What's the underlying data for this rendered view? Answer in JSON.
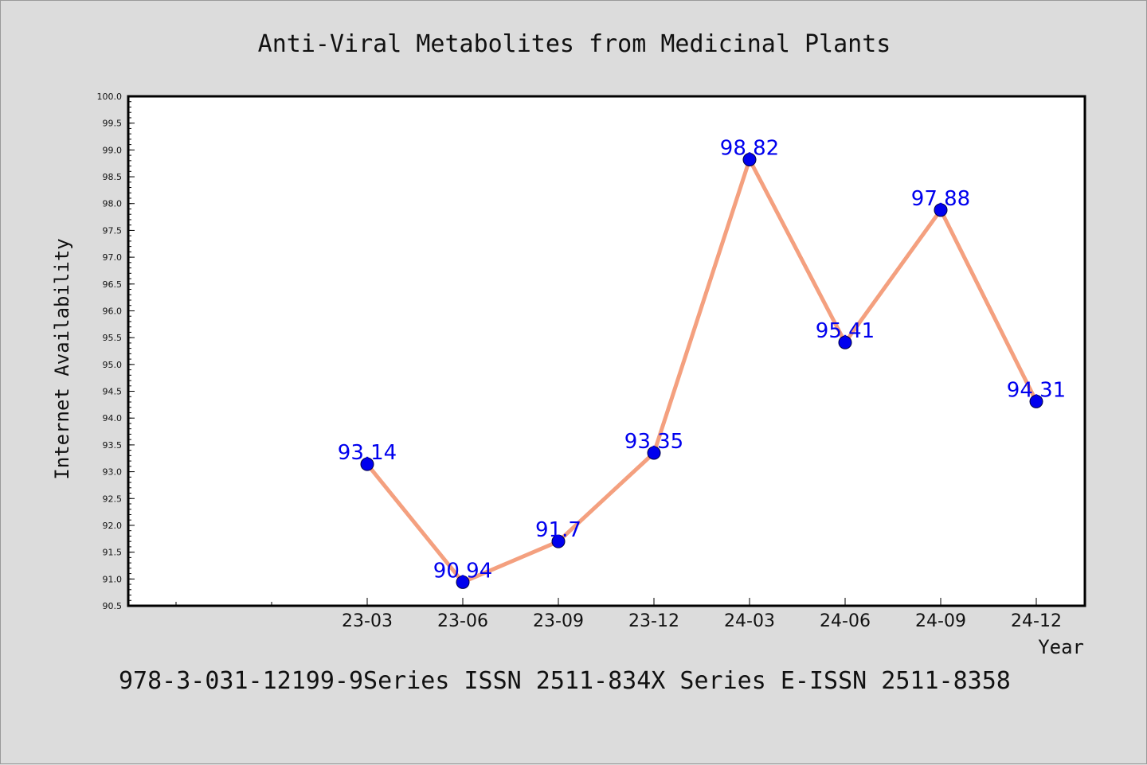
{
  "chart_data": {
    "type": "line",
    "title": "Anti-Viral Metabolites from Medicinal Plants",
    "xlabel": "Year",
    "ylabel": "Internet Availability",
    "categories": [
      "23-03",
      "23-06",
      "23-09",
      "23-12",
      "24-03",
      "24-06",
      "24-09",
      "24-12"
    ],
    "values": [
      93.14,
      90.94,
      91.7,
      93.35,
      98.82,
      95.41,
      97.88,
      94.31
    ],
    "data_labels": [
      "93.14",
      "90.94",
      "91.7",
      "93.35",
      "98.82",
      "95.41",
      "97.88",
      "94.31"
    ],
    "ylim": [
      90.5,
      100.0
    ],
    "y_major_ticks": [
      "90.5",
      "91.0",
      "91.5",
      "92.0",
      "92.5",
      "93.0",
      "93.5",
      "94.0",
      "94.5",
      "95.0",
      "95.5",
      "96.0",
      "96.5",
      "97.0",
      "97.5",
      "98.0",
      "98.5",
      "99.0",
      "99.5",
      "100.0"
    ],
    "grid": false,
    "legend": "none",
    "colors": {
      "line": "#f4a07f",
      "marker": "#0000ee",
      "marker_edge": "#000044",
      "label": "#0000ee",
      "plot_background": "#ffffff",
      "figure_background": "#dcdcdc"
    }
  },
  "footer": {
    "text": "978-3-031-12199-9Series ISSN 2511-834X Series E-ISSN 2511-8358"
  }
}
